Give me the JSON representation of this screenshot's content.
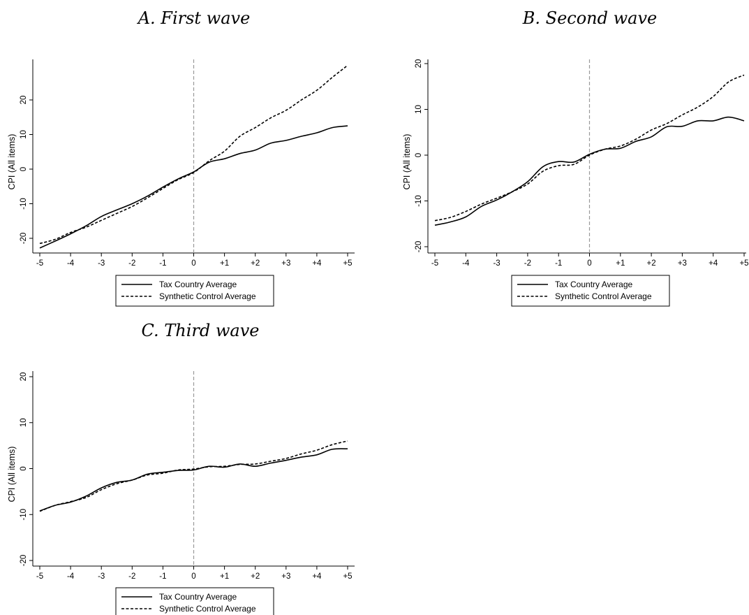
{
  "chart_data": [
    {
      "type": "line",
      "title": "A. First wave",
      "xlabel": "",
      "ylabel": "CPI (All items)",
      "xticks": [
        "-5",
        "-4",
        "-3",
        "-2",
        "-1",
        "0",
        "+1",
        "+2",
        "+3",
        "+4",
        "+5"
      ],
      "yticks": [
        -20,
        -10,
        0,
        10,
        20
      ],
      "xlim": [
        -5,
        5
      ],
      "ylim": [
        -24,
        30
      ],
      "reference_line_x": 0,
      "legend_position": "bottom",
      "series": [
        {
          "name": "Tax Country Average",
          "style": "solid",
          "x": [
            -5,
            -4.5,
            -4,
            -3.5,
            -3,
            -2.5,
            -2,
            -1.5,
            -1,
            -0.5,
            0,
            0.5,
            1,
            1.5,
            2,
            2.5,
            3,
            3.5,
            4,
            4.5,
            5
          ],
          "y": [
            -22.8,
            -20.8,
            -18.7,
            -16.4,
            -13.7,
            -11.8,
            -10.0,
            -7.8,
            -5.2,
            -2.8,
            -0.8,
            2.0,
            3.0,
            4.5,
            5.5,
            7.5,
            8.3,
            9.5,
            10.5,
            12.0,
            12.5
          ]
        },
        {
          "name": "Synthetic Control Average",
          "style": "dashed",
          "x": [
            -5,
            -4.5,
            -4,
            -3.5,
            -3,
            -2.5,
            -2,
            -1.5,
            -1,
            -0.5,
            0,
            0.5,
            1,
            1.5,
            2,
            2.5,
            3,
            3.5,
            4,
            4.5,
            5
          ],
          "y": [
            -21.5,
            -20.3,
            -18.3,
            -16.8,
            -14.8,
            -12.8,
            -10.8,
            -8.3,
            -5.6,
            -3.0,
            -1.0,
            2.4,
            5.2,
            9.5,
            12.0,
            14.8,
            17.0,
            20.0,
            22.8,
            26.5,
            30.0
          ]
        }
      ]
    },
    {
      "type": "line",
      "title": "B. Second wave",
      "xlabel": "",
      "ylabel": "CPI (All items)",
      "xticks": [
        "-5",
        "-4",
        "-3",
        "-2",
        "-1",
        "0",
        "+1",
        "+2",
        "+3",
        "+4",
        "+5"
      ],
      "yticks": [
        -20,
        -10,
        0,
        10,
        20
      ],
      "xlim": [
        -5,
        5
      ],
      "ylim": [
        -20,
        20
      ],
      "reference_line_x": 0,
      "legend_position": "bottom",
      "series": [
        {
          "name": "Tax Country Average",
          "style": "solid",
          "x": [
            -5,
            -4.5,
            -4,
            -3.5,
            -3,
            -2.5,
            -2,
            -1.5,
            -1,
            -0.5,
            0,
            0.5,
            1,
            1.5,
            2,
            2.5,
            3,
            3.5,
            4,
            4.5,
            5
          ],
          "y": [
            -15.3,
            -14.6,
            -13.5,
            -11.2,
            -9.8,
            -8.0,
            -5.8,
            -2.5,
            -1.4,
            -1.5,
            0.2,
            1.3,
            1.5,
            3.0,
            4.0,
            6.2,
            6.3,
            7.5,
            7.5,
            8.3,
            7.5
          ]
        },
        {
          "name": "Synthetic Control Average",
          "style": "dashed",
          "x": [
            -5,
            -4.5,
            -4,
            -3.5,
            -3,
            -2.5,
            -2,
            -1.5,
            -1,
            -0.5,
            0,
            0.5,
            1,
            1.5,
            2,
            2.5,
            3,
            3.5,
            4,
            4.5,
            5
          ],
          "y": [
            -14.3,
            -13.6,
            -12.3,
            -10.7,
            -9.4,
            -8.0,
            -6.3,
            -3.5,
            -2.3,
            -2.0,
            0.0,
            1.3,
            2.0,
            3.5,
            5.5,
            6.9,
            8.8,
            10.5,
            12.8,
            16.0,
            17.5
          ]
        }
      ]
    },
    {
      "type": "line",
      "title": "C. Third wave",
      "xlabel": "",
      "ylabel": "CPI (All items)",
      "xticks": [
        "-5",
        "-4",
        "-3",
        "-2",
        "-1",
        "0",
        "+1",
        "+2",
        "+3",
        "+4",
        "+5"
      ],
      "yticks": [
        -20,
        -10,
        0,
        10,
        20
      ],
      "xlim": [
        -5,
        5
      ],
      "ylim": [
        -21,
        21
      ],
      "reference_line_x": 0,
      "legend_position": "bottom",
      "series": [
        {
          "name": "Tax Country Average",
          "style": "solid",
          "x": [
            -5,
            -4.5,
            -4,
            -3.5,
            -3,
            -2.5,
            -2,
            -1.5,
            -1,
            -0.5,
            0,
            0.5,
            1,
            1.5,
            2,
            2.5,
            3,
            3.5,
            4,
            4.5,
            5
          ],
          "y": [
            -9.2,
            -8.0,
            -7.3,
            -6.0,
            -4.2,
            -3.0,
            -2.5,
            -1.2,
            -0.8,
            -0.4,
            -0.3,
            0.5,
            0.3,
            1.0,
            0.5,
            1.2,
            1.8,
            2.5,
            3.0,
            4.2,
            4.3
          ]
        },
        {
          "name": "Synthetic Control Average",
          "style": "dashed",
          "x": [
            -5,
            -4.5,
            -4,
            -3.5,
            -3,
            -2.5,
            -2,
            -1.5,
            -1,
            -0.5,
            0,
            0.5,
            1,
            1.5,
            2,
            2.5,
            3,
            3.5,
            4,
            4.5,
            5
          ],
          "y": [
            -9.3,
            -8.0,
            -7.2,
            -6.3,
            -4.6,
            -3.3,
            -2.5,
            -1.4,
            -1.0,
            -0.3,
            -0.1,
            0.4,
            0.5,
            0.9,
            1.0,
            1.6,
            2.2,
            3.2,
            4.0,
            5.2,
            6.0
          ]
        }
      ]
    }
  ]
}
